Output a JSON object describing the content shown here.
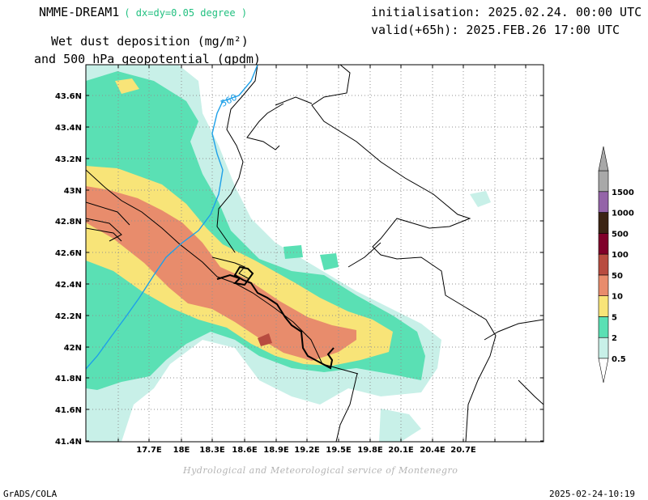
{
  "header": {
    "model_name": "NMME-DREAM1",
    "model_resolution": "( dx=dy=0.05 degree )",
    "title_line1": "Wet dust deposition (mg/m²)",
    "title_line2": "and 500 hPa geopotential (gpdm)",
    "init_line": "initialisation: 2025.02.24. 00:00 UTC",
    "valid_line": "valid(+65h): 2025.FEB.26 17:00 UTC"
  },
  "footer": {
    "credit": "Hydrological and Meteorological service of Montenegro",
    "software": "GrADS/COLA",
    "timestamp": "2025-02-24-10:19"
  },
  "map": {
    "lon_ticks": [
      "17.7E",
      "18E",
      "18.3E",
      "18.6E",
      "18.9E",
      "19.2E",
      "19.5E",
      "19.8E",
      "20.1E",
      "20.4E",
      "20.7E"
    ],
    "lat_ticks": [
      "43.6N",
      "43.4N",
      "43.2N",
      "43N",
      "42.8N",
      "42.6N",
      "42.4N",
      "42.2N",
      "42N",
      "41.8N",
      "41.6N",
      "41.4N"
    ],
    "contour_label": "560",
    "colors": {
      "lvl_0_5": "#c8f0e8",
      "lvl_2": "#5ae0b4",
      "lvl_5": "#f8e478",
      "lvl_10": "#e88c6c",
      "lvl_50": "#b84c40",
      "contour": "#1ea0e8"
    }
  },
  "legend": {
    "levels": [
      "0.5",
      "2",
      "5",
      "10",
      "50",
      "100",
      "500",
      "1000",
      "1500"
    ],
    "colors": [
      "#c8f0e8",
      "#5ae0b4",
      "#f8e478",
      "#e88c6c",
      "#b84c40",
      "#80002a",
      "#3c2414",
      "#9464a8",
      "#a8a8a8"
    ]
  }
}
